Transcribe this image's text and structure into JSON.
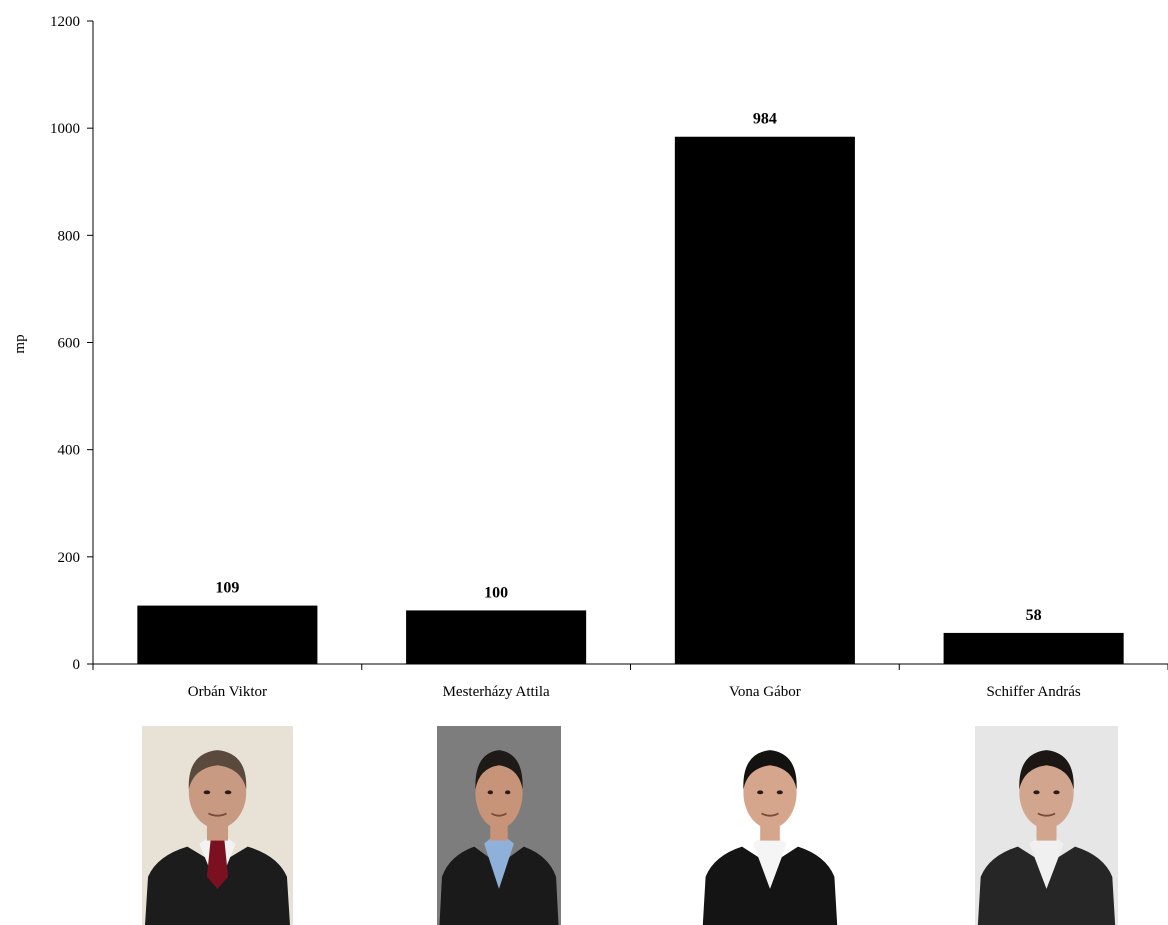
{
  "chart_data": {
    "type": "bar",
    "title": "",
    "xlabel": "",
    "ylabel": "mp",
    "ylim": [
      0,
      1200
    ],
    "yticks": [
      0,
      200,
      400,
      600,
      800,
      1000,
      1200
    ],
    "grid": false,
    "categories": [
      "Orbán Viktor",
      "Mesterházy Attila",
      "Vona Gábor",
      "Schiffer András"
    ],
    "series": [
      {
        "values": [
          109,
          100,
          984,
          58
        ],
        "color": "#000000"
      }
    ],
    "data_labels": [
      "109",
      "100",
      "984",
      "58"
    ]
  },
  "portraits": [
    {
      "subject": "Orbán Viktor",
      "background": "#e8e1d6",
      "jacket": "#1c1c1c",
      "shirt": "#f2f2f2",
      "tie": "#7a1020",
      "skin": "#c99a82",
      "hair": "#5a4a3e"
    },
    {
      "subject": "Mesterházy Attila",
      "background": "#7d7d7d",
      "jacket": "#1a1a1a",
      "shirt": "#8fb0d8",
      "tie": "",
      "skin": "#c79479",
      "hair": "#1e1a18"
    },
    {
      "subject": "Vona Gábor",
      "background": "#ffffff",
      "jacket": "#141414",
      "shirt": "#f5f5f5",
      "tie": "",
      "skin": "#d5a58c",
      "hair": "#141210"
    },
    {
      "subject": "Schiffer András",
      "background": "#e6e6e6",
      "jacket": "#262626",
      "shirt": "#f0f0f0",
      "tie": "",
      "skin": "#d2a58e",
      "hair": "#1c1714"
    }
  ]
}
